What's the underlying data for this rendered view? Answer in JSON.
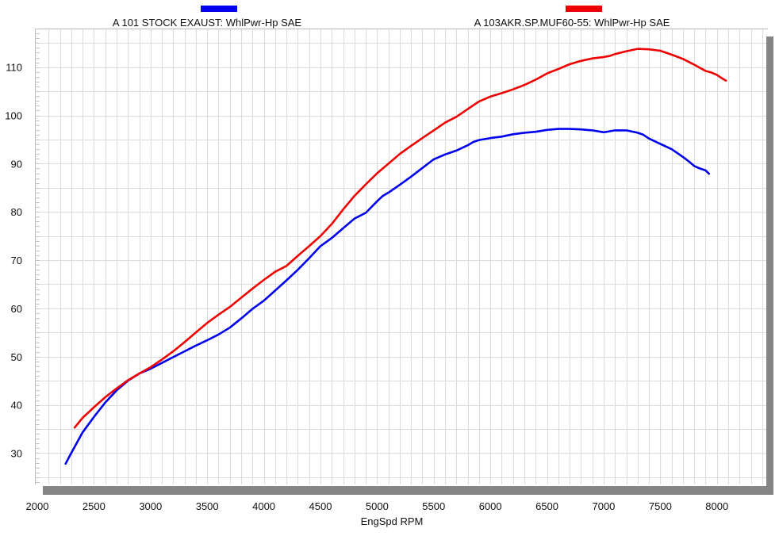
{
  "chart_data": {
    "type": "line",
    "xlabel": "EngSpd  RPM",
    "ylabel": "",
    "xlim": [
      2000,
      8450
    ],
    "ylim": [
      23.5,
      118
    ],
    "x_ticks": [
      2000,
      2500,
      3000,
      3500,
      4000,
      4500,
      5000,
      5500,
      6000,
      6500,
      7000,
      7500,
      8000
    ],
    "y_ticks": [
      30,
      40,
      50,
      60,
      70,
      80,
      90,
      100,
      110
    ],
    "grid": true,
    "legend_position": "top",
    "series": [
      {
        "name": "A 101 STOCK EXAUST: WhlPwr-Hp SAE",
        "color": "#0000ee",
        "points": [
          [
            2250,
            27.8
          ],
          [
            2300,
            30
          ],
          [
            2400,
            34.3
          ],
          [
            2500,
            37.5
          ],
          [
            2600,
            40.5
          ],
          [
            2700,
            43
          ],
          [
            2800,
            45
          ],
          [
            2900,
            46.5
          ],
          [
            3000,
            47.5
          ],
          [
            3100,
            48.7
          ],
          [
            3200,
            49.9
          ],
          [
            3300,
            51.1
          ],
          [
            3400,
            52.3
          ],
          [
            3500,
            53.4
          ],
          [
            3600,
            54.6
          ],
          [
            3700,
            56
          ],
          [
            3800,
            57.9
          ],
          [
            3900,
            59.9
          ],
          [
            4000,
            61.6
          ],
          [
            4100,
            63.7
          ],
          [
            4200,
            65.8
          ],
          [
            4300,
            68
          ],
          [
            4400,
            70.4
          ],
          [
            4500,
            72.9
          ],
          [
            4600,
            74.6
          ],
          [
            4700,
            76.6
          ],
          [
            4800,
            78.6
          ],
          [
            4900,
            79.8
          ],
          [
            5000,
            82.2
          ],
          [
            5050,
            83.3
          ],
          [
            5100,
            84
          ],
          [
            5200,
            85.6
          ],
          [
            5300,
            87.3
          ],
          [
            5400,
            89.1
          ],
          [
            5500,
            90.9
          ],
          [
            5600,
            91.9
          ],
          [
            5700,
            92.7
          ],
          [
            5800,
            93.8
          ],
          [
            5850,
            94.5
          ],
          [
            5900,
            94.9
          ],
          [
            6000,
            95.3
          ],
          [
            6100,
            95.6
          ],
          [
            6200,
            96.1
          ],
          [
            6300,
            96.4
          ],
          [
            6400,
            96.6
          ],
          [
            6500,
            97
          ],
          [
            6600,
            97.2
          ],
          [
            6700,
            97.2
          ],
          [
            6800,
            97.1
          ],
          [
            6900,
            96.9
          ],
          [
            7000,
            96.5
          ],
          [
            7100,
            96.9
          ],
          [
            7200,
            96.9
          ],
          [
            7300,
            96.4
          ],
          [
            7350,
            96
          ],
          [
            7400,
            95.2
          ],
          [
            7500,
            94.1
          ],
          [
            7600,
            93
          ],
          [
            7700,
            91.4
          ],
          [
            7750,
            90.5
          ],
          [
            7800,
            89.5
          ],
          [
            7850,
            89
          ],
          [
            7900,
            88.6
          ],
          [
            7930,
            87.9
          ]
        ]
      },
      {
        "name": "A 103AKR.SP.MUF60-55: WhlPwr-Hp SAE",
        "color": "#ee0000",
        "points": [
          [
            2330,
            35.3
          ],
          [
            2400,
            37.3
          ],
          [
            2500,
            39.5
          ],
          [
            2600,
            41.6
          ],
          [
            2700,
            43.4
          ],
          [
            2800,
            45.1
          ],
          [
            2900,
            46.5
          ],
          [
            3000,
            47.8
          ],
          [
            3100,
            49.4
          ],
          [
            3200,
            51.1
          ],
          [
            3300,
            53
          ],
          [
            3400,
            55
          ],
          [
            3500,
            57
          ],
          [
            3600,
            58.7
          ],
          [
            3700,
            60.3
          ],
          [
            3800,
            62.2
          ],
          [
            3900,
            64.1
          ],
          [
            4000,
            65.9
          ],
          [
            4100,
            67.6
          ],
          [
            4200,
            68.8
          ],
          [
            4300,
            70.9
          ],
          [
            4400,
            72.9
          ],
          [
            4500,
            75
          ],
          [
            4600,
            77.5
          ],
          [
            4700,
            80.5
          ],
          [
            4800,
            83.3
          ],
          [
            4900,
            85.7
          ],
          [
            5000,
            88
          ],
          [
            5100,
            90
          ],
          [
            5200,
            92
          ],
          [
            5300,
            93.7
          ],
          [
            5400,
            95.3
          ],
          [
            5500,
            96.9
          ],
          [
            5600,
            98.5
          ],
          [
            5700,
            99.7
          ],
          [
            5800,
            101.3
          ],
          [
            5900,
            102.9
          ],
          [
            6000,
            103.9
          ],
          [
            6100,
            104.6
          ],
          [
            6200,
            105.4
          ],
          [
            6300,
            106.3
          ],
          [
            6400,
            107.4
          ],
          [
            6500,
            108.7
          ],
          [
            6600,
            109.6
          ],
          [
            6700,
            110.6
          ],
          [
            6800,
            111.3
          ],
          [
            6900,
            111.8
          ],
          [
            7000,
            112.1
          ],
          [
            7050,
            112.3
          ],
          [
            7100,
            112.7
          ],
          [
            7200,
            113.3
          ],
          [
            7300,
            113.8
          ],
          [
            7400,
            113.7
          ],
          [
            7500,
            113.4
          ],
          [
            7600,
            112.6
          ],
          [
            7700,
            111.7
          ],
          [
            7800,
            110.5
          ],
          [
            7900,
            109.2
          ],
          [
            7950,
            108.9
          ],
          [
            8000,
            108.4
          ],
          [
            8050,
            107.6
          ],
          [
            8080,
            107.2
          ]
        ]
      }
    ]
  }
}
